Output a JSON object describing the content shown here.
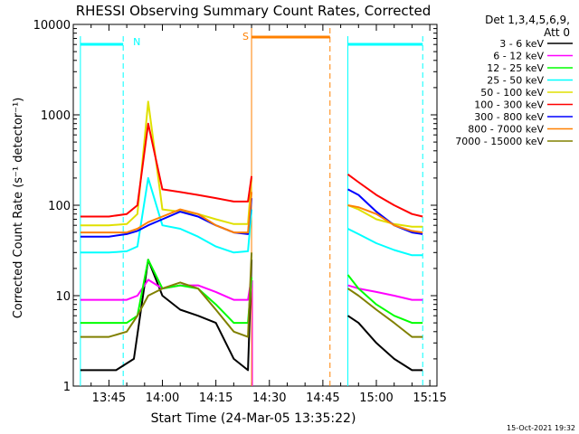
{
  "chart_data": {
    "type": "line",
    "title": "RHESSI Observing Summary Count Rates, Corrected",
    "xlabel": "Start Time (24-Mar-05 13:35:22)",
    "ylabel": "Corrected Count Rate (s⁻¹ detector⁻¹)",
    "y_scale": "log",
    "ylim": [
      1,
      10000
    ],
    "xlim": [
      "13:35",
      "15:17"
    ],
    "x_ticks": [
      "13:45",
      "14:00",
      "14:15",
      "14:30",
      "14:45",
      "15:00",
      "15:15"
    ],
    "y_ticks": [
      "1",
      "10",
      "100",
      "1000",
      "10000"
    ],
    "legend_header": [
      "Det 1,3,4,5,6,9,",
      "Att 0"
    ],
    "legend_position": "right-top",
    "footer_date": "15-Oct-2021 19:32",
    "data_gap": [
      "14:25",
      "14:52"
    ],
    "series": [
      {
        "name": "3 - 6 keV",
        "color": "#000000",
        "x": [
          "13:37",
          "13:47",
          "13:52",
          "13:56",
          "14:00",
          "14:05",
          "14:10",
          "14:15",
          "14:20",
          "14:24",
          "14:25",
          "14:52",
          "14:55",
          "15:00",
          "15:05",
          "15:10",
          "15:13"
        ],
        "values": [
          1.5,
          1.5,
          2,
          25,
          10,
          7,
          6,
          5,
          2,
          1.5,
          25,
          6,
          5,
          3,
          2,
          1.5,
          1.5
        ]
      },
      {
        "name": "6 - 12 keV",
        "color": "#ff00ff",
        "x": [
          "13:37",
          "13:45",
          "13:50",
          "13:53",
          "13:56",
          "14:00",
          "14:05",
          "14:10",
          "14:15",
          "14:20",
          "14:24",
          "14:25",
          "14:52",
          "14:55",
          "15:00",
          "15:05",
          "15:10",
          "15:13"
        ],
        "values": [
          9,
          9,
          9,
          10,
          15,
          12,
          13,
          13,
          11,
          9,
          9,
          16,
          13,
          12,
          11,
          10,
          9,
          9
        ]
      },
      {
        "name": "12 - 25 keV",
        "color": "#00ff00",
        "x": [
          "13:37",
          "13:45",
          "13:50",
          "13:53",
          "13:56",
          "14:00",
          "14:05",
          "14:10",
          "14:15",
          "14:20",
          "14:24",
          "14:25",
          "14:52",
          "14:55",
          "15:00",
          "15:05",
          "15:10",
          "15:13"
        ],
        "values": [
          5,
          5,
          5,
          6,
          25,
          12,
          13,
          12,
          8,
          5,
          5,
          16,
          17,
          12,
          8,
          6,
          5,
          5
        ]
      },
      {
        "name": "25 - 50 keV",
        "color": "#00ffff",
        "x": [
          "13:37",
          "13:45",
          "13:50",
          "13:53",
          "13:56",
          "14:00",
          "14:05",
          "14:10",
          "14:15",
          "14:20",
          "14:24",
          "14:25",
          "14:52",
          "14:55",
          "15:00",
          "15:05",
          "15:10",
          "15:13"
        ],
        "values": [
          30,
          30,
          31,
          35,
          200,
          60,
          55,
          45,
          35,
          30,
          31,
          90,
          55,
          48,
          38,
          32,
          28,
          28
        ]
      },
      {
        "name": "50 - 100 keV",
        "color": "#e0e000",
        "x": [
          "13:37",
          "13:45",
          "13:50",
          "13:53",
          "13:56",
          "14:00",
          "14:05",
          "14:10",
          "14:15",
          "14:20",
          "14:24",
          "14:25",
          "14:52",
          "14:55",
          "15:00",
          "15:05",
          "15:10",
          "15:13"
        ],
        "values": [
          60,
          60,
          62,
          80,
          1400,
          90,
          85,
          80,
          70,
          62,
          62,
          200,
          100,
          90,
          70,
          62,
          58,
          58
        ]
      },
      {
        "name": "100 - 300 keV",
        "color": "#ff0000",
        "x": [
          "13:37",
          "13:45",
          "13:50",
          "13:53",
          "13:56",
          "14:00",
          "14:05",
          "14:10",
          "14:15",
          "14:20",
          "14:24",
          "14:25",
          "14:52",
          "14:55",
          "15:00",
          "15:05",
          "15:10",
          "15:13"
        ],
        "values": [
          75,
          75,
          80,
          100,
          800,
          150,
          140,
          130,
          120,
          110,
          110,
          210,
          220,
          180,
          130,
          100,
          80,
          75
        ]
      },
      {
        "name": "300 - 800 keV",
        "color": "#0000ff",
        "x": [
          "13:37",
          "13:45",
          "13:50",
          "13:53",
          "13:56",
          "14:00",
          "14:05",
          "14:10",
          "14:15",
          "14:20",
          "14:24",
          "14:25",
          "14:52",
          "14:55",
          "15:00",
          "15:05",
          "15:10",
          "15:13"
        ],
        "values": [
          45,
          45,
          48,
          52,
          60,
          70,
          85,
          75,
          60,
          50,
          48,
          120,
          150,
          130,
          85,
          60,
          50,
          48
        ]
      },
      {
        "name": "800 - 7000 keV",
        "color": "#ff8000",
        "x": [
          "13:37",
          "13:45",
          "13:50",
          "13:53",
          "13:56",
          "14:00",
          "14:05",
          "14:10",
          "14:15",
          "14:20",
          "14:24",
          "14:25",
          "14:52",
          "14:55",
          "15:00",
          "15:05",
          "15:10",
          "15:13"
        ],
        "values": [
          50,
          50,
          50,
          55,
          65,
          75,
          90,
          80,
          60,
          50,
          50,
          140,
          100,
          95,
          80,
          60,
          52,
          50
        ]
      },
      {
        "name": "7000 - 15000 keV",
        "color": "#808000",
        "x": [
          "13:37",
          "13:45",
          "13:50",
          "13:53",
          "13:56",
          "14:00",
          "14:05",
          "14:10",
          "14:15",
          "14:20",
          "14:24",
          "14:25",
          "14:52",
          "14:55",
          "15:00",
          "15:05",
          "15:10",
          "15:13"
        ],
        "values": [
          3.5,
          3.5,
          4,
          6,
          10,
          12,
          14,
          12,
          7,
          4,
          3.5,
          30,
          12,
          10,
          7,
          5,
          3.5,
          3.5
        ]
      }
    ],
    "annotations": {
      "night_label": "N",
      "saa_label": "S"
    }
  }
}
